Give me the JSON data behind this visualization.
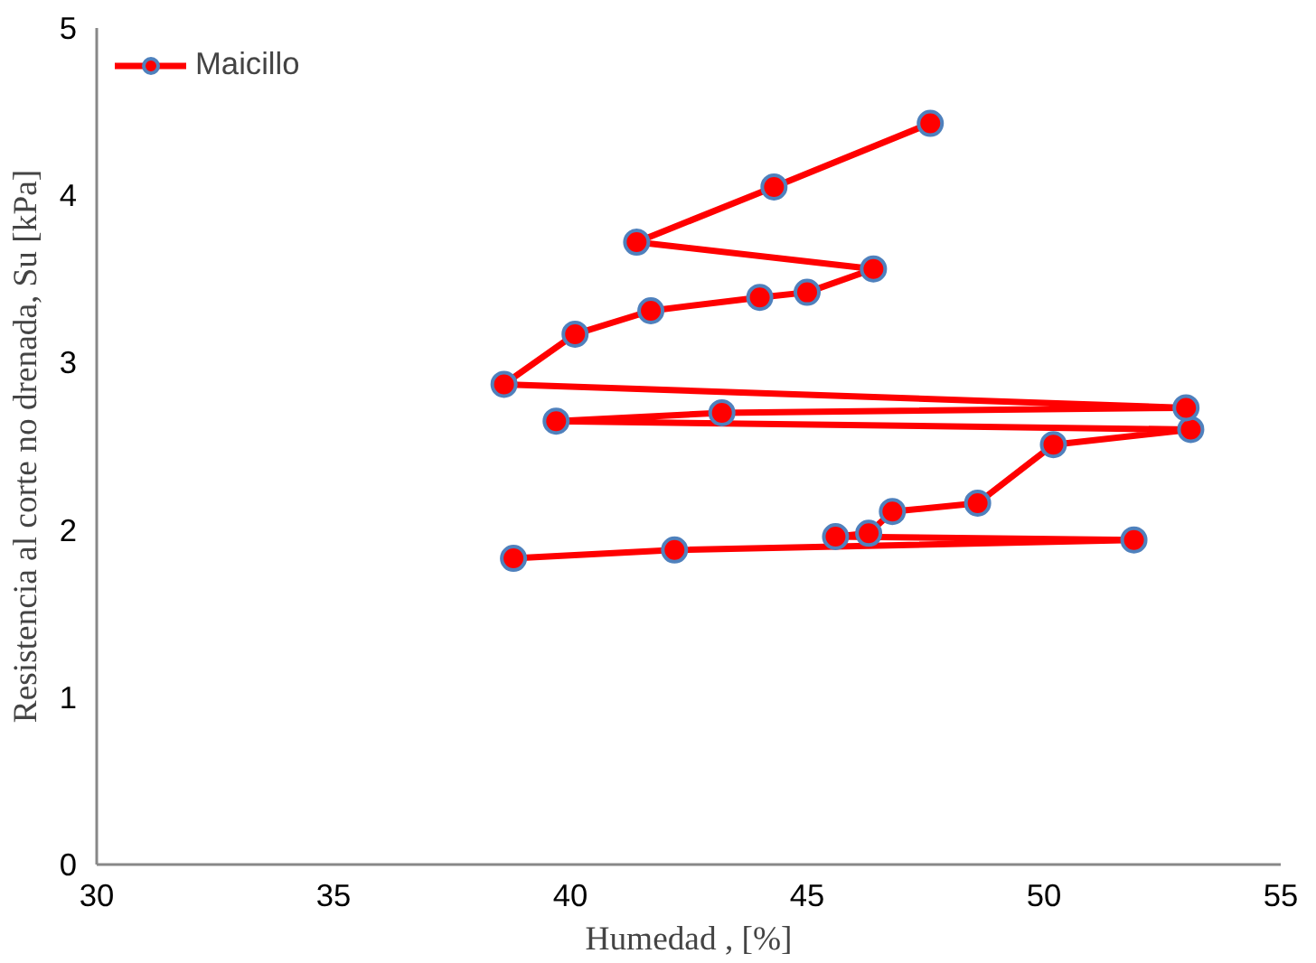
{
  "chart_data": {
    "type": "line",
    "xlabel": "Humedad , [%]",
    "ylabel": "Resistencia al corte no drenada, Su [kPa]",
    "xlim": [
      30,
      55
    ],
    "xticks": [
      30,
      35,
      40,
      45,
      50,
      55
    ],
    "ylim": [
      0,
      5
    ],
    "yticks": [
      0,
      1,
      2,
      3,
      4,
      5
    ],
    "grid": false,
    "legend": "top left",
    "marker": "circle",
    "line_style": "solid",
    "series": [
      {
        "name": "Maicillo",
        "color": "#ff0000",
        "x": [
          38.8,
          42.2,
          51.9,
          45.6,
          46.3,
          46.8,
          48.6,
          50.2,
          53.1,
          39.7,
          43.2,
          53.0,
          38.6,
          40.1,
          41.7,
          44.0,
          45.0,
          46.4,
          41.4,
          44.3,
          47.6
        ],
        "values": [
          1.83,
          1.88,
          1.94,
          1.96,
          1.98,
          2.11,
          2.16,
          2.51,
          2.6,
          2.65,
          2.7,
          2.73,
          2.87,
          3.17,
          3.31,
          3.39,
          3.42,
          3.56,
          3.72,
          4.05,
          4.43
        ]
      }
    ]
  }
}
